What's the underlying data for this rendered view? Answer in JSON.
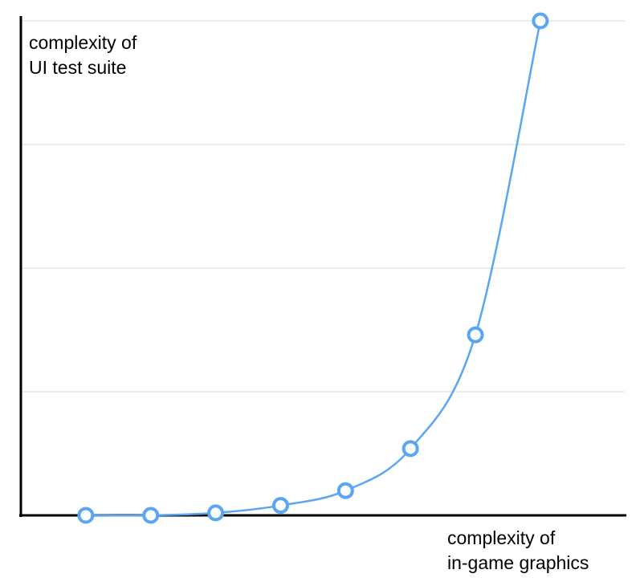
{
  "chart_data": {
    "type": "line",
    "smooth": true,
    "xlabel": [
      "complexity of",
      "in-game graphics"
    ],
    "ylabel": [
      "complexity of",
      "UI test suite"
    ],
    "x": [
      1,
      2,
      3,
      4,
      5,
      6,
      7,
      8
    ],
    "xlim": [
      0,
      9.3
    ],
    "ylim": [
      0,
      100
    ],
    "series": [
      {
        "values": [
          0,
          0,
          1,
          4,
          10,
          27,
          73,
          200
        ]
      }
    ],
    "y_range_shown": [
      0,
      200
    ],
    "grid": {
      "horizontal": true,
      "lines": 4
    },
    "ticks_shown": false,
    "colors": {
      "line": "#5aa6f2",
      "marker_fill": "#ffffff",
      "axis": "#000000",
      "grid": "#d9d9d9"
    }
  }
}
